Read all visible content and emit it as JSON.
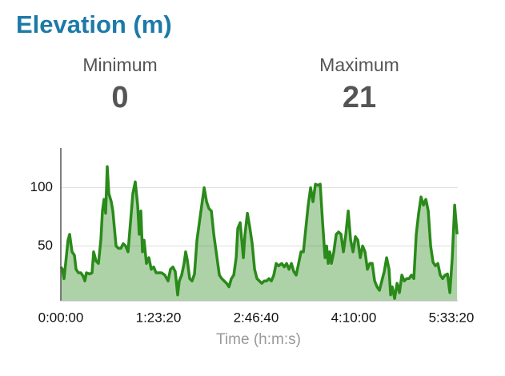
{
  "stats": [
    {
      "label": "Minimum",
      "value": 0
    },
    {
      "label": "Maximum",
      "value": 21
    }
  ],
  "chart_data": {
    "type": "area",
    "title": "Elevation (m)",
    "xlabel": "Time (h:m:s)",
    "xlim": [
      0,
      20330
    ],
    "ylim": [
      3,
      134
    ],
    "xticks": [
      {
        "value": 0,
        "label": "0:00:00"
      },
      {
        "value": 5000,
        "label": "1:23:20"
      },
      {
        "value": 10000,
        "label": "2:46:40"
      },
      {
        "value": 15000,
        "label": "4:10:00"
      },
      {
        "value": 20000,
        "label": "5:33:20"
      }
    ],
    "yticks": [
      50,
      100
    ],
    "grid": true,
    "series": [
      {
        "name": "Elevation",
        "color": "#2a8a1a",
        "x": [
          0,
          82,
          164,
          246,
          369,
          451,
          574,
          697,
          779,
          902,
          1025,
          1148,
          1230,
          1312,
          1476,
          1599,
          1681,
          1804,
          1927,
          2050,
          2132,
          2214,
          2296,
          2378,
          2460,
          2583,
          2665,
          2747,
          2829,
          2952,
          3075,
          3198,
          3321,
          3444,
          3567,
          3690,
          3813,
          3936,
          4018,
          4100,
          4182,
          4264,
          4387,
          4510,
          4633,
          4756,
          4879,
          5002,
          5166,
          5330,
          5494,
          5617,
          5740,
          5863,
          5986,
          6068,
          6191,
          6314,
          6396,
          6478,
          6601,
          6724,
          6847,
          6970,
          7093,
          7216,
          7339,
          7462,
          7585,
          7708,
          7831,
          7913,
          7995,
          8118,
          8241,
          8364,
          8487,
          8610,
          8733,
          8856,
          8979,
          9061,
          9184,
          9266,
          9348,
          9430,
          9553,
          9676,
          9799,
          9922,
          10045,
          10168,
          10291,
          10414,
          10537,
          10660,
          10783,
          10906,
          11029,
          11152,
          11316,
          11439,
          11562,
          11685,
          11808,
          11931,
          12054,
          12177,
          12300,
          12423,
          12546,
          12669,
          12792,
          12915,
          13038,
          13161,
          13284,
          13407,
          13530,
          13612,
          13694,
          13776,
          13858,
          13981,
          14104,
          14227,
          14350,
          14473,
          14596,
          14719,
          14842,
          14965,
          15088,
          15211,
          15334,
          15457,
          15580,
          15703,
          15826,
          15949,
          16072,
          16195,
          16318,
          16441,
          16564,
          16687,
          16810,
          16892,
          16974,
          17097,
          17220,
          17343,
          17466,
          17589,
          17712,
          17835,
          17958,
          18081,
          18204,
          18327,
          18450,
          18573,
          18696,
          18819,
          18942,
          19065,
          19188,
          19311,
          19434,
          19557,
          19680,
          19803,
          19926,
          20049,
          20172,
          20295
        ],
        "values": [
          32,
          30,
          22,
          35,
          55,
          60,
          45,
          42,
          30,
          27,
          27,
          24,
          20,
          27,
          26,
          27,
          45,
          37,
          35,
          55,
          80,
          90,
          78,
          118,
          95,
          88,
          80,
          65,
          50,
          48,
          48,
          52,
          50,
          45,
          70,
          95,
          105,
          85,
          60,
          80,
          45,
          55,
          35,
          40,
          30,
          32,
          27,
          27,
          27,
          25,
          20,
          30,
          32,
          28,
          8,
          20,
          25,
          35,
          45,
          38,
          22,
          20,
          26,
          55,
          70,
          85,
          100,
          88,
          82,
          80,
          60,
          50,
          40,
          25,
          22,
          20,
          18,
          15,
          22,
          25,
          40,
          65,
          70,
          55,
          40,
          60,
          78,
          66,
          52,
          30,
          22,
          20,
          18,
          20,
          20,
          22,
          20,
          25,
          35,
          33,
          35,
          32,
          35,
          30,
          35,
          28,
          25,
          35,
          45,
          45,
          65,
          85,
          100,
          88,
          103,
          102,
          103,
          70,
          40,
          50,
          35,
          45,
          35,
          45,
          60,
          62,
          60,
          45,
          60,
          80,
          55,
          45,
          58,
          55,
          40,
          50,
          45,
          30,
          35,
          35,
          20,
          15,
          12,
          20,
          28,
          40,
          30,
          8,
          15,
          5,
          18,
          10,
          25,
          20,
          22,
          22,
          25,
          22,
          60,
          78,
          92,
          85,
          90,
          80,
          50,
          36,
          33,
          35,
          25,
          22,
          25,
          26,
          10,
          40,
          85,
          60
        ]
      }
    ]
  }
}
